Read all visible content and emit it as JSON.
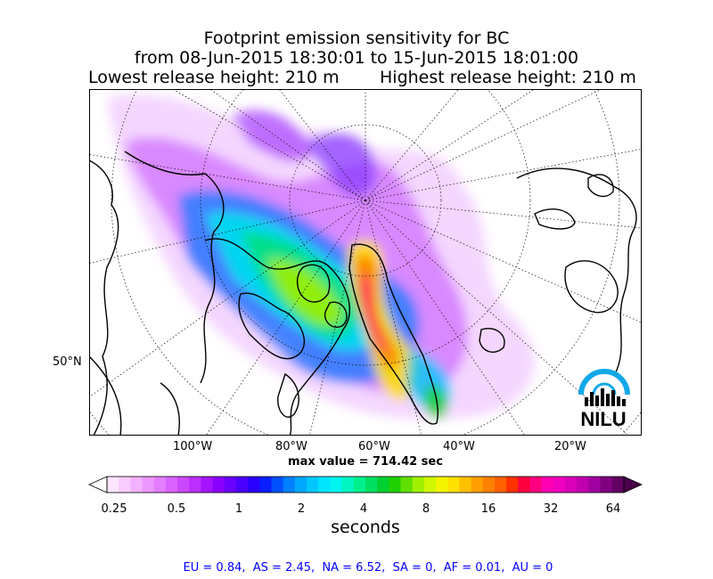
{
  "title": {
    "line1": "Footprint emission sensitivity for BC",
    "line2": "from 08-Jun-2015 18:30:01 to 15-Jun-2015 18:01:00",
    "lowest": "Lowest release height: 210 m",
    "highest": "Highest release height: 210 m"
  },
  "map": {
    "lon_labels": [
      "100°W",
      "80°W",
      "60°W",
      "40°W",
      "20°W"
    ],
    "lat_labels": [
      "50°N"
    ],
    "max_value": "max value = 714.42 sec",
    "logo_text": "NILU"
  },
  "colorbar": {
    "tick_labels": [
      "0.25",
      "0.5",
      "1",
      "2",
      "4",
      "8",
      "16",
      "32",
      "64"
    ],
    "units": "seconds",
    "colors": [
      "#fde6ff",
      "#f9ccff",
      "#f3b2ff",
      "#ec97ff",
      "#e47dff",
      "#da62ff",
      "#cc48ff",
      "#bb2eff",
      "#a514ff",
      "#8a00ff",
      "#6a00ff",
      "#4a00ff",
      "#2a00ff",
      "#0a1eff",
      "#0050ff",
      "#0080ff",
      "#00a8ff",
      "#00c8ff",
      "#00e4ff",
      "#00f5ee",
      "#00f5c0",
      "#00f090",
      "#00e060",
      "#00d030",
      "#20d000",
      "#60e000",
      "#a0f000",
      "#d0f800",
      "#f5f500",
      "#ffe000",
      "#ffc000",
      "#ffa000",
      "#ff8000",
      "#ff6000",
      "#ff3000",
      "#ff0040",
      "#ff0080",
      "#ff00b0",
      "#f000c0",
      "#d800b8",
      "#c000b0",
      "#a000a0",
      "#800080",
      "#600060"
    ]
  },
  "source_fractions": "EU = 0.84,  AS = 2.45,  NA = 6.52,  SA = 0,  AF = 0.01,  AU = 0"
}
